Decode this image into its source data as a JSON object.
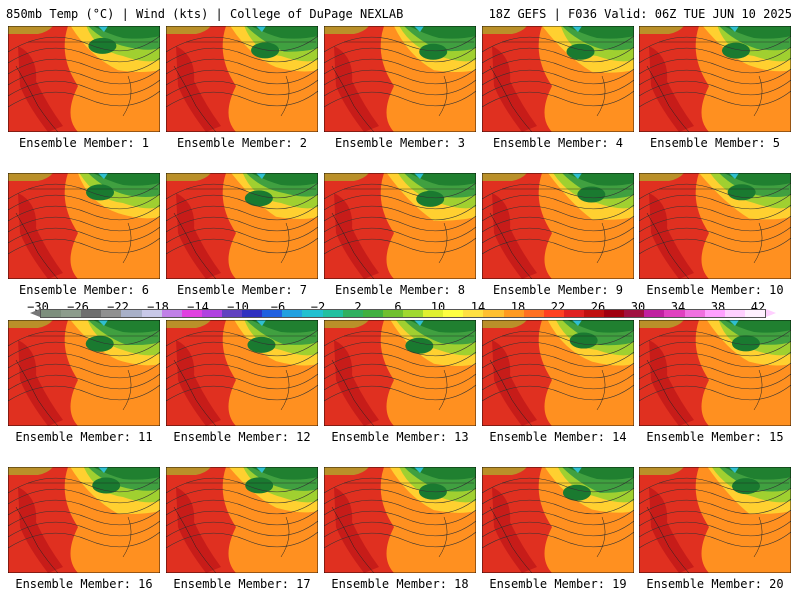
{
  "header": {
    "left": "850mb Temp (°C) | Wind (kts) | College of DuPage NEXLAB",
    "right": "18Z GEFS | F036 Valid: 06Z TUE JUN 10 2025"
  },
  "panels": [
    {
      "label": "Ensemble Member: 1"
    },
    {
      "label": "Ensemble Member: 2"
    },
    {
      "label": "Ensemble Member: 3"
    },
    {
      "label": "Ensemble Member: 4"
    },
    {
      "label": "Ensemble Member: 5"
    },
    {
      "label": "Ensemble Member: 6"
    },
    {
      "label": "Ensemble Member: 7"
    },
    {
      "label": "Ensemble Member: 8"
    },
    {
      "label": "Ensemble Member: 9"
    },
    {
      "label": "Ensemble Member: 10"
    },
    {
      "label": "Ensemble Member: 11"
    },
    {
      "label": "Ensemble Member: 12"
    },
    {
      "label": "Ensemble Member: 13"
    },
    {
      "label": "Ensemble Member: 14"
    },
    {
      "label": "Ensemble Member: 15"
    },
    {
      "label": "Ensemble Member: 16"
    },
    {
      "label": "Ensemble Member: 17"
    },
    {
      "label": "Ensemble Member: 18"
    },
    {
      "label": "Ensemble Member: 19"
    },
    {
      "label": "Ensemble Member: 20"
    }
  ],
  "colorbar": {
    "labels": [
      "−30",
      "−26",
      "−22",
      "−18",
      "−14",
      "−10",
      "−6",
      "−2",
      "2",
      "6",
      "10",
      "14",
      "18",
      "22",
      "26",
      "30",
      "34",
      "38",
      "42"
    ],
    "colors": [
      "#7d8f7d",
      "#8c9c8c",
      "#6f6f6f",
      "#909090",
      "#a8b0c8",
      "#c8c8e8",
      "#c080e8",
      "#e040e0",
      "#b040e0",
      "#6040c0",
      "#3030c0",
      "#2060e0",
      "#20a0e0",
      "#20c0d0",
      "#20c0a0",
      "#30b060",
      "#40b040",
      "#70c030",
      "#a0d830",
      "#e0f030",
      "#ffff40",
      "#ffe040",
      "#ffc030",
      "#ff9a20",
      "#ff7020",
      "#ff4020",
      "#e02020",
      "#c01010",
      "#a00010",
      "#a01040",
      "#c020a0",
      "#e040c0",
      "#f070e0",
      "#ffa0ff",
      "#ffd0ff",
      "#fff0ff"
    ]
  }
}
